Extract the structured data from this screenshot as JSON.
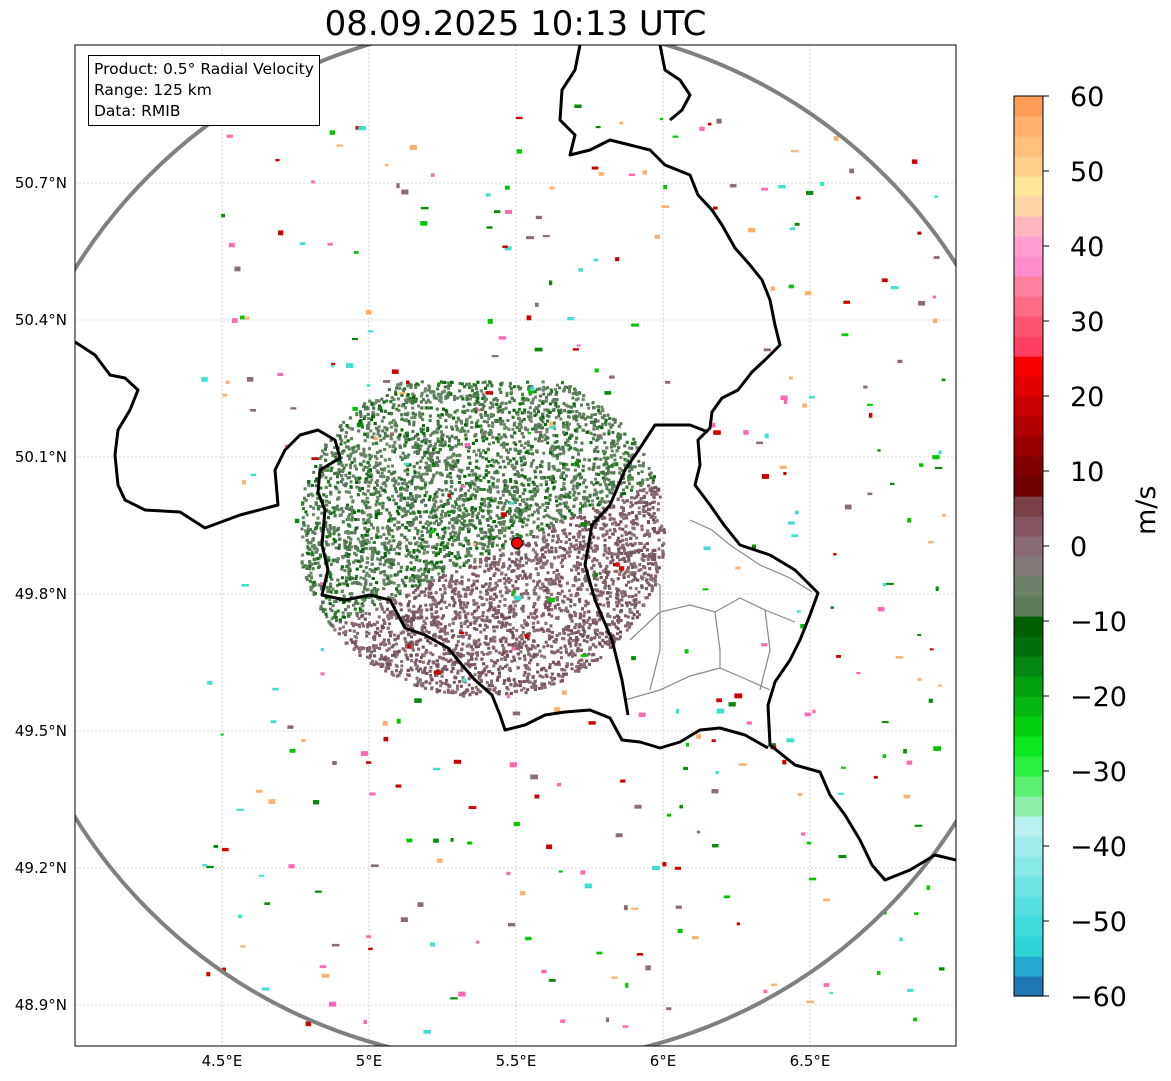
{
  "title": "08.09.2025 10:13 UTC",
  "info": {
    "product": "Product: 0.5° Radial Velocity",
    "range": "Range: 125 km",
    "data": "Data: RMIB"
  },
  "axes": {
    "lon_ticks": [
      {
        "value": 4.5,
        "label": "4.5°E"
      },
      {
        "value": 5.0,
        "label": "5°E"
      },
      {
        "value": 5.5,
        "label": "5.5°E"
      },
      {
        "value": 6.0,
        "label": "6°E"
      },
      {
        "value": 6.5,
        "label": "6.5°E"
      }
    ],
    "lat_ticks": [
      {
        "value": 50.7,
        "label": "50.7°N"
      },
      {
        "value": 50.4,
        "label": "50.4°N"
      },
      {
        "value": 50.1,
        "label": "50.1°N"
      },
      {
        "value": 49.8,
        "label": "49.8°N"
      },
      {
        "value": 49.5,
        "label": "49.5°N"
      },
      {
        "value": 49.2,
        "label": "49.2°N"
      },
      {
        "value": 48.9,
        "label": "48.9°N"
      }
    ],
    "lon_range": [
      4.0,
      7.0
    ],
    "lat_range": [
      48.8,
      51.0
    ],
    "grid": true
  },
  "radar": {
    "lon": 5.505,
    "lat": 49.914,
    "range_km": 125
  },
  "colorbar": {
    "label": "m/s",
    "min": -60,
    "max": 60,
    "ticks": [
      60,
      50,
      40,
      30,
      20,
      10,
      0,
      -10,
      -20,
      -30,
      -40,
      -50,
      -60
    ],
    "tick_labels": [
      "60",
      "50",
      "40",
      "30",
      "20",
      "10",
      "0",
      "−10",
      "−20",
      "−30",
      "−40",
      "−50",
      "−60"
    ],
    "colors": [
      "#1f77b4",
      "#22a9cf",
      "#2ed3d6",
      "#3fdcdc",
      "#55e0e0",
      "#6ee4e4",
      "#88e8e8",
      "#a0ecec",
      "#b8f0f0",
      "#8ef0a8",
      "#5cf070",
      "#2cf040",
      "#0ce820",
      "#05d010",
      "#04b810",
      "#03a010",
      "#028810",
      "#01700c",
      "#006000",
      "#5c7a5c",
      "#6b8268",
      "#837a78",
      "#8a6a74",
      "#855561",
      "#7a4048",
      "#6e0000",
      "#800000",
      "#980000",
      "#b00000",
      "#c80000",
      "#e00000",
      "#f80000",
      "#ff4060",
      "#ff5470",
      "#ff6a84",
      "#ff7f9f",
      "#ff8ccd",
      "#ff9fd0",
      "#ffb6c1",
      "#ffd4a8",
      "#ffe69a",
      "#ffd08c",
      "#ffbf7d",
      "#ffb06e",
      "#ff9c55"
    ]
  },
  "legend_colors": {
    "approaching": "#00a000",
    "receding": "#cc0000",
    "near_zero": "#7d6e6e",
    "range_ring": "#808080",
    "border": "#000000",
    "radar_site": "#ff0000"
  }
}
